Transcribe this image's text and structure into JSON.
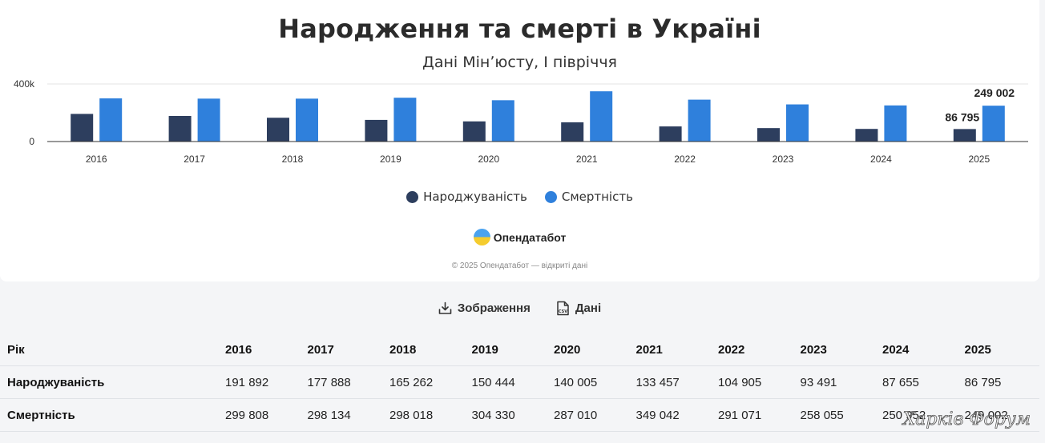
{
  "title": "Народження та смерті в Україні",
  "subtitle": "Дані Мінʼюсту, І півріччя",
  "legend": {
    "births": "Народжуваність",
    "deaths": "Смертність"
  },
  "logo": {
    "name": "Опендатабот"
  },
  "copyright": "© 2025 Опендатабот — відкриті дані",
  "actions": {
    "image_label": "Зображення",
    "data_label": "Дані"
  },
  "colors": {
    "births": "#2d3e5e",
    "deaths": "#2f80dc"
  },
  "chart_data": {
    "type": "bar",
    "title": "Народження та смерті в Україні",
    "subtitle": "Дані Мінʼюсту, І півріччя",
    "categories": [
      "2016",
      "2017",
      "2018",
      "2019",
      "2020",
      "2021",
      "2022",
      "2023",
      "2024",
      "2025"
    ],
    "series": [
      {
        "name": "Народжуваність",
        "values": [
          191892,
          177888,
          165262,
          150444,
          140005,
          133457,
          104905,
          93491,
          87655,
          86795
        ]
      },
      {
        "name": "Смертність",
        "values": [
          299808,
          298134,
          298018,
          304330,
          287010,
          349042,
          291071,
          258055,
          250952,
          249002
        ]
      }
    ],
    "y_ticks": [
      "0",
      "400k"
    ],
    "ylim": [
      0,
      400000
    ],
    "data_labels": {
      "births_2025": "86 795",
      "deaths_2025": "249 002"
    },
    "legend_position": "bottom",
    "grid": true
  },
  "table": {
    "header_label": "Рік",
    "years": [
      "2016",
      "2017",
      "2018",
      "2019",
      "2020",
      "2021",
      "2022",
      "2023",
      "2024",
      "2025"
    ],
    "rows": [
      {
        "label": "Народжуваність",
        "values": [
          "191 892",
          "177 888",
          "165 262",
          "150 444",
          "140 005",
          "133 457",
          "104 905",
          "93 491",
          "87 655",
          "86 795"
        ]
      },
      {
        "label": "Смертність",
        "values": [
          "299 808",
          "298 134",
          "298 018",
          "304 330",
          "287 010",
          "349 042",
          "291 071",
          "258 055",
          "250 952",
          "249 002"
        ]
      }
    ]
  },
  "watermark": "Харків Форум"
}
